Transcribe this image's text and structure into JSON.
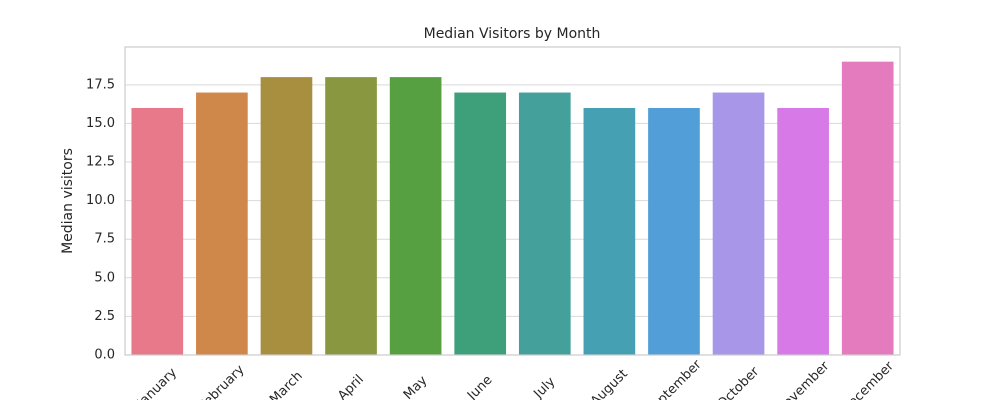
{
  "chart_data": {
    "type": "bar",
    "title": "Median Visitors by Month",
    "y_label": "Median visitors",
    "categories": [
      "January",
      "February",
      "March",
      "April",
      "May",
      "June",
      "July",
      "August",
      "September",
      "October",
      "November",
      "December"
    ],
    "values": [
      16,
      17,
      18,
      18,
      18,
      17,
      17,
      16,
      16,
      17,
      16,
      19
    ],
    "colors": [
      "#e7798a",
      "#d0884a",
      "#a88f3f",
      "#8a9741",
      "#57a041",
      "#3ea07a",
      "#43a09a",
      "#45a0b3",
      "#519ed8",
      "#a896e8",
      "#d77ae8",
      "#e47bbf"
    ],
    "ylim": [
      0,
      19.95
    ],
    "yticks": [
      {
        "value": 0,
        "label": "0.0"
      },
      2.5,
      {
        "value": 5,
        "label": "5.0"
      },
      7.5,
      {
        "value": 10,
        "label": "10.0"
      },
      12.5,
      {
        "value": 15,
        "label": "15.0"
      },
      17.5
    ],
    "grid": true
  }
}
